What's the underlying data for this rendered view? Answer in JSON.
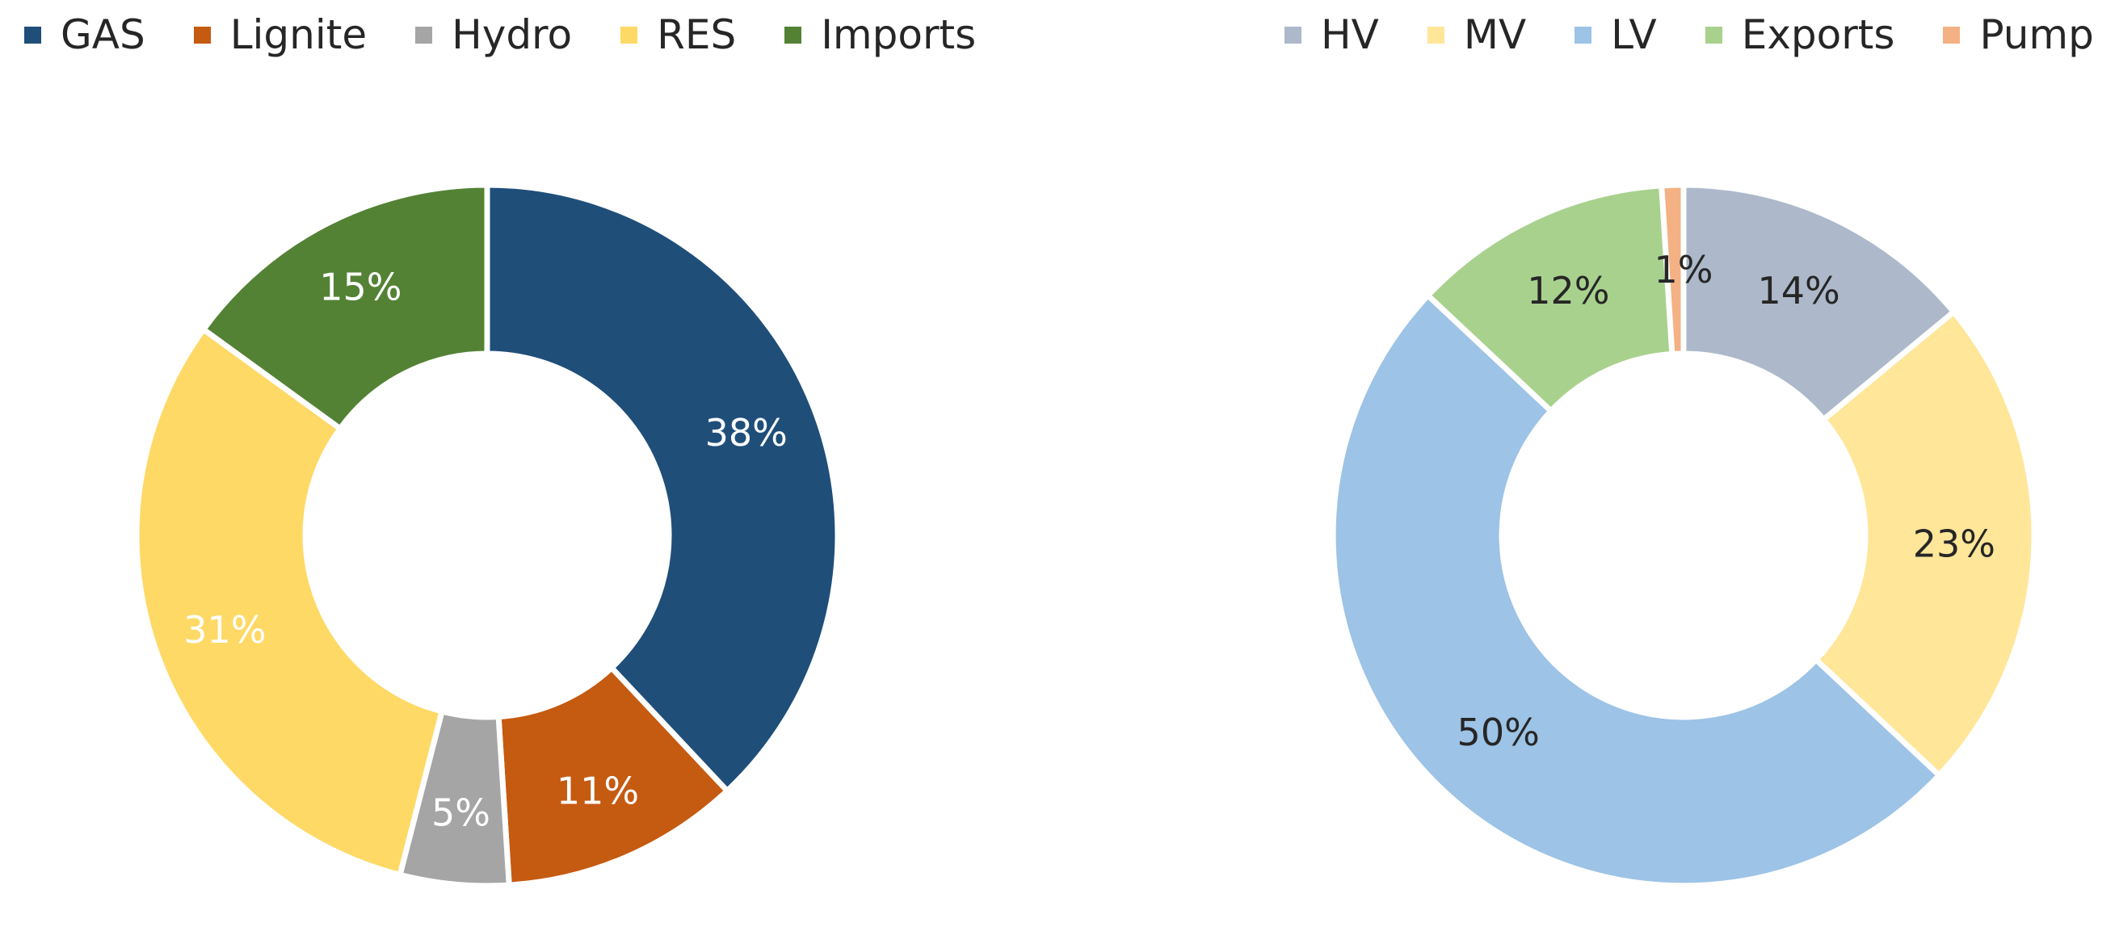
{
  "colors": {
    "gas": "#1f4e79",
    "lignite": "#c55a11",
    "hydro": "#a5a5a5",
    "res": "#ffd966",
    "imports": "#548235",
    "hv": "#adb9ca",
    "mv": "#ffe699",
    "lv": "#9dc3e6",
    "exports": "#a9d18e",
    "pump": "#f4b183"
  },
  "chart_data": [
    {
      "type": "pie",
      "style": "donut",
      "title": "",
      "legend_position": "top",
      "categories": [
        "GAS",
        "Lignite",
        "Hydro",
        "RES",
        "Imports"
      ],
      "values": [
        38,
        11,
        5,
        31,
        15
      ],
      "data_labels": [
        "38%",
        "11%",
        "5%",
        "31%",
        "15%"
      ],
      "label_colors": [
        "#ffffff",
        "#ffffff",
        "#ffffff",
        "#ffffff",
        "#ffffff"
      ]
    },
    {
      "type": "pie",
      "style": "donut",
      "title": "",
      "legend_position": "top",
      "categories": [
        "HV",
        "MV",
        "LV",
        "Exports",
        "Pump"
      ],
      "values": [
        14,
        23,
        50,
        12,
        1
      ],
      "data_labels": [
        "14%",
        "23%",
        "50%",
        "12%",
        "1%"
      ],
      "label_colors": [
        "#262626",
        "#262626",
        "#262626",
        "#262626",
        "#262626"
      ]
    }
  ]
}
